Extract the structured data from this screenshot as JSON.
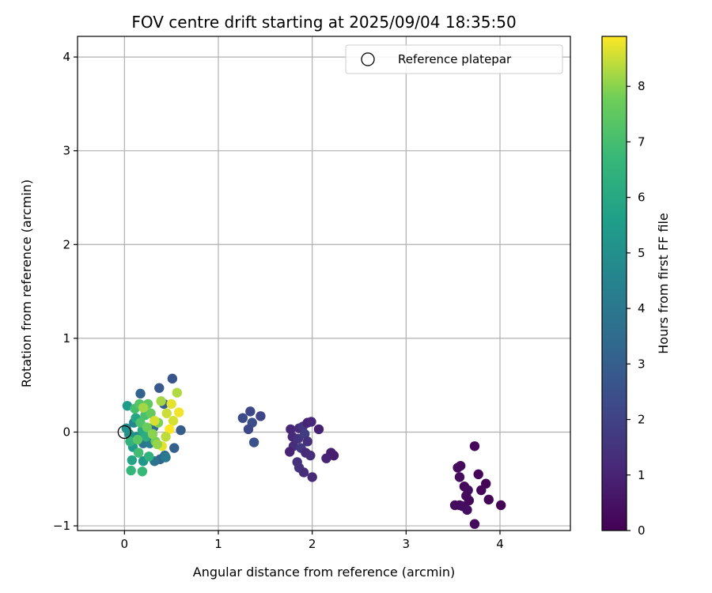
{
  "chart_data": {
    "type": "scatter",
    "title": "FOV centre drift starting at 2025/09/04 18:35:50",
    "xlabel": "Angular distance from reference (arcmin)",
    "ylabel": "Rotation from reference (arcmin)",
    "xlim": [
      -0.5,
      4.75
    ],
    "ylim": [
      -1.05,
      4.22
    ],
    "xticks": [
      0,
      1,
      2,
      3,
      4
    ],
    "yticks": [
      -1,
      0,
      1,
      2,
      3,
      4
    ],
    "xtick_labels": [
      "0",
      "1",
      "2",
      "3",
      "4"
    ],
    "ytick_labels": [
      "−1",
      "0",
      "1",
      "2",
      "3",
      "4"
    ],
    "grid": true,
    "legend": {
      "placement": "top-right",
      "entries": [
        {
          "label": "Reference platepar",
          "marker": "open-circle"
        }
      ]
    },
    "reference_point": {
      "x": 0,
      "y": 0
    },
    "colorbar": {
      "label": "Hours from first FF file",
      "colormap": "viridis",
      "range": [
        0,
        8.9
      ],
      "ticks": [
        0,
        1,
        2,
        3,
        4,
        5,
        6,
        7,
        8
      ],
      "tick_labels": [
        "0",
        "1",
        "2",
        "3",
        "4",
        "5",
        "6",
        "7",
        "8"
      ]
    },
    "points": [
      {
        "x": 3.73,
        "y": -0.15,
        "hours": 0.2
      },
      {
        "x": 3.55,
        "y": -0.38,
        "hours": 0.3
      },
      {
        "x": 3.58,
        "y": -0.36,
        "hours": 0.25
      },
      {
        "x": 3.57,
        "y": -0.48,
        "hours": 0.3
      },
      {
        "x": 3.77,
        "y": -0.45,
        "hours": 0.15
      },
      {
        "x": 3.62,
        "y": -0.58,
        "hours": 0.2
      },
      {
        "x": 3.66,
        "y": -0.62,
        "hours": 0.35
      },
      {
        "x": 3.85,
        "y": -0.55,
        "hours": 0.1
      },
      {
        "x": 3.8,
        "y": -0.62,
        "hours": 0.15
      },
      {
        "x": 3.64,
        "y": -0.68,
        "hours": 0.3
      },
      {
        "x": 3.67,
        "y": -0.73,
        "hours": 0.2
      },
      {
        "x": 3.88,
        "y": -0.72,
        "hours": 0.1
      },
      {
        "x": 3.52,
        "y": -0.78,
        "hours": 0.3
      },
      {
        "x": 3.57,
        "y": -0.78,
        "hours": 0.25
      },
      {
        "x": 3.6,
        "y": -0.79,
        "hours": 0.35
      },
      {
        "x": 3.65,
        "y": -0.83,
        "hours": 0.4
      },
      {
        "x": 4.01,
        "y": -0.78,
        "hours": 0.05
      },
      {
        "x": 3.73,
        "y": -0.98,
        "hours": 0.3
      },
      {
        "x": 1.77,
        "y": 0.03,
        "hours": 1.1
      },
      {
        "x": 1.86,
        "y": 0.04,
        "hours": 1.3
      },
      {
        "x": 1.9,
        "y": 0.06,
        "hours": 1.6
      },
      {
        "x": 1.95,
        "y": 0.1,
        "hours": 1.0
      },
      {
        "x": 1.99,
        "y": 0.11,
        "hours": 1.1
      },
      {
        "x": 2.07,
        "y": 0.03,
        "hours": 0.9
      },
      {
        "x": 1.79,
        "y": -0.05,
        "hours": 1.2
      },
      {
        "x": 1.85,
        "y": -0.07,
        "hours": 1.5
      },
      {
        "x": 1.92,
        "y": -0.02,
        "hours": 1.8
      },
      {
        "x": 1.95,
        "y": -0.1,
        "hours": 1.4
      },
      {
        "x": 1.8,
        "y": -0.15,
        "hours": 1.3
      },
      {
        "x": 1.88,
        "y": -0.17,
        "hours": 1.7
      },
      {
        "x": 1.76,
        "y": -0.21,
        "hours": 1.0
      },
      {
        "x": 1.93,
        "y": -0.22,
        "hours": 1.2
      },
      {
        "x": 1.98,
        "y": -0.25,
        "hours": 1.3
      },
      {
        "x": 2.2,
        "y": -0.22,
        "hours": 0.9
      },
      {
        "x": 2.23,
        "y": -0.25,
        "hours": 0.8
      },
      {
        "x": 2.15,
        "y": -0.28,
        "hours": 1.0
      },
      {
        "x": 1.84,
        "y": -0.32,
        "hours": 1.4
      },
      {
        "x": 1.86,
        "y": -0.38,
        "hours": 1.5
      },
      {
        "x": 1.91,
        "y": -0.43,
        "hours": 1.3
      },
      {
        "x": 2.0,
        "y": -0.48,
        "hours": 1.2
      },
      {
        "x": 1.34,
        "y": 0.22,
        "hours": 2.2
      },
      {
        "x": 1.26,
        "y": 0.15,
        "hours": 2.3
      },
      {
        "x": 1.45,
        "y": 0.17,
        "hours": 2.1
      },
      {
        "x": 1.36,
        "y": 0.1,
        "hours": 2.4
      },
      {
        "x": 1.32,
        "y": 0.03,
        "hours": 2.2
      },
      {
        "x": 1.38,
        "y": -0.11,
        "hours": 2.5
      },
      {
        "x": 0.51,
        "y": 0.57,
        "hours": 2.7
      },
      {
        "x": 0.37,
        "y": 0.47,
        "hours": 2.8
      },
      {
        "x": 0.17,
        "y": 0.41,
        "hours": 3.2
      },
      {
        "x": 0.42,
        "y": 0.3,
        "hours": 3.0
      },
      {
        "x": 0.6,
        "y": 0.02,
        "hours": 2.9
      },
      {
        "x": 0.53,
        "y": -0.17,
        "hours": 3.0
      },
      {
        "x": 0.43,
        "y": -0.25,
        "hours": 3.6
      },
      {
        "x": 0.38,
        "y": -0.29,
        "hours": 3.3
      },
      {
        "x": 0.32,
        "y": -0.31,
        "hours": 3.8
      },
      {
        "x": 0.44,
        "y": -0.27,
        "hours": 4.1
      },
      {
        "x": 0.2,
        "y": -0.12,
        "hours": 3.9
      },
      {
        "x": 0.31,
        "y": 0.05,
        "hours": 3.5
      },
      {
        "x": 0.27,
        "y": -0.12,
        "hours": 4.3
      },
      {
        "x": 0.1,
        "y": 0.1,
        "hours": 4.6
      },
      {
        "x": 0.13,
        "y": -0.05,
        "hours": 4.8
      },
      {
        "x": 0.02,
        "y": 0.04,
        "hours": 5.0
      },
      {
        "x": 0.05,
        "y": -0.02,
        "hours": 5.2
      },
      {
        "x": 0.03,
        "y": 0.28,
        "hours": 5.5
      },
      {
        "x": 0.09,
        "y": -0.16,
        "hours": 5.4
      },
      {
        "x": 0.2,
        "y": -0.31,
        "hours": 5.3
      },
      {
        "x": 0.08,
        "y": -0.3,
        "hours": 5.8
      },
      {
        "x": 0.12,
        "y": 0.15,
        "hours": 5.9
      },
      {
        "x": 0.19,
        "y": 0.02,
        "hours": 6.0
      },
      {
        "x": 0.23,
        "y": -0.05,
        "hours": 6.2
      },
      {
        "x": 0.07,
        "y": -0.41,
        "hours": 6.6
      },
      {
        "x": 0.19,
        "y": -0.42,
        "hours": 6.7
      },
      {
        "x": 0.26,
        "y": -0.26,
        "hours": 6.4
      },
      {
        "x": 0.15,
        "y": -0.22,
        "hours": 6.9
      },
      {
        "x": 0.06,
        "y": -0.1,
        "hours": 6.5
      },
      {
        "x": 0.11,
        "y": 0.25,
        "hours": 7.0
      },
      {
        "x": 0.16,
        "y": 0.3,
        "hours": 7.3
      },
      {
        "x": 0.22,
        "y": 0.18,
        "hours": 7.1
      },
      {
        "x": 0.25,
        "y": 0.3,
        "hours": 7.5
      },
      {
        "x": 0.28,
        "y": 0.2,
        "hours": 7.6
      },
      {
        "x": 0.17,
        "y": 0.1,
        "hours": 7.2
      },
      {
        "x": 0.14,
        "y": -0.08,
        "hours": 7.4
      },
      {
        "x": 0.24,
        "y": 0.05,
        "hours": 7.7
      },
      {
        "x": 0.33,
        "y": -0.1,
        "hours": 7.8
      },
      {
        "x": 0.36,
        "y": 0.1,
        "hours": 7.9
      },
      {
        "x": 0.39,
        "y": 0.33,
        "hours": 8.2
      },
      {
        "x": 0.45,
        "y": 0.2,
        "hours": 8.5
      },
      {
        "x": 0.5,
        "y": 0.3,
        "hours": 8.7
      },
      {
        "x": 0.56,
        "y": 0.42,
        "hours": 8.3
      },
      {
        "x": 0.58,
        "y": 0.21,
        "hours": 8.8
      },
      {
        "x": 0.52,
        "y": 0.12,
        "hours": 8.6
      },
      {
        "x": 0.48,
        "y": 0.03,
        "hours": 8.9
      },
      {
        "x": 0.44,
        "y": -0.05,
        "hours": 8.4
      },
      {
        "x": 0.4,
        "y": -0.15,
        "hours": 8.7
      },
      {
        "x": 0.35,
        "y": -0.13,
        "hours": 8.1
      },
      {
        "x": 0.3,
        "y": -0.02,
        "hours": 8.0
      },
      {
        "x": 0.32,
        "y": 0.12,
        "hours": 8.6
      },
      {
        "x": 0.2,
        "y": 0.26,
        "hours": 8.2
      }
    ]
  }
}
